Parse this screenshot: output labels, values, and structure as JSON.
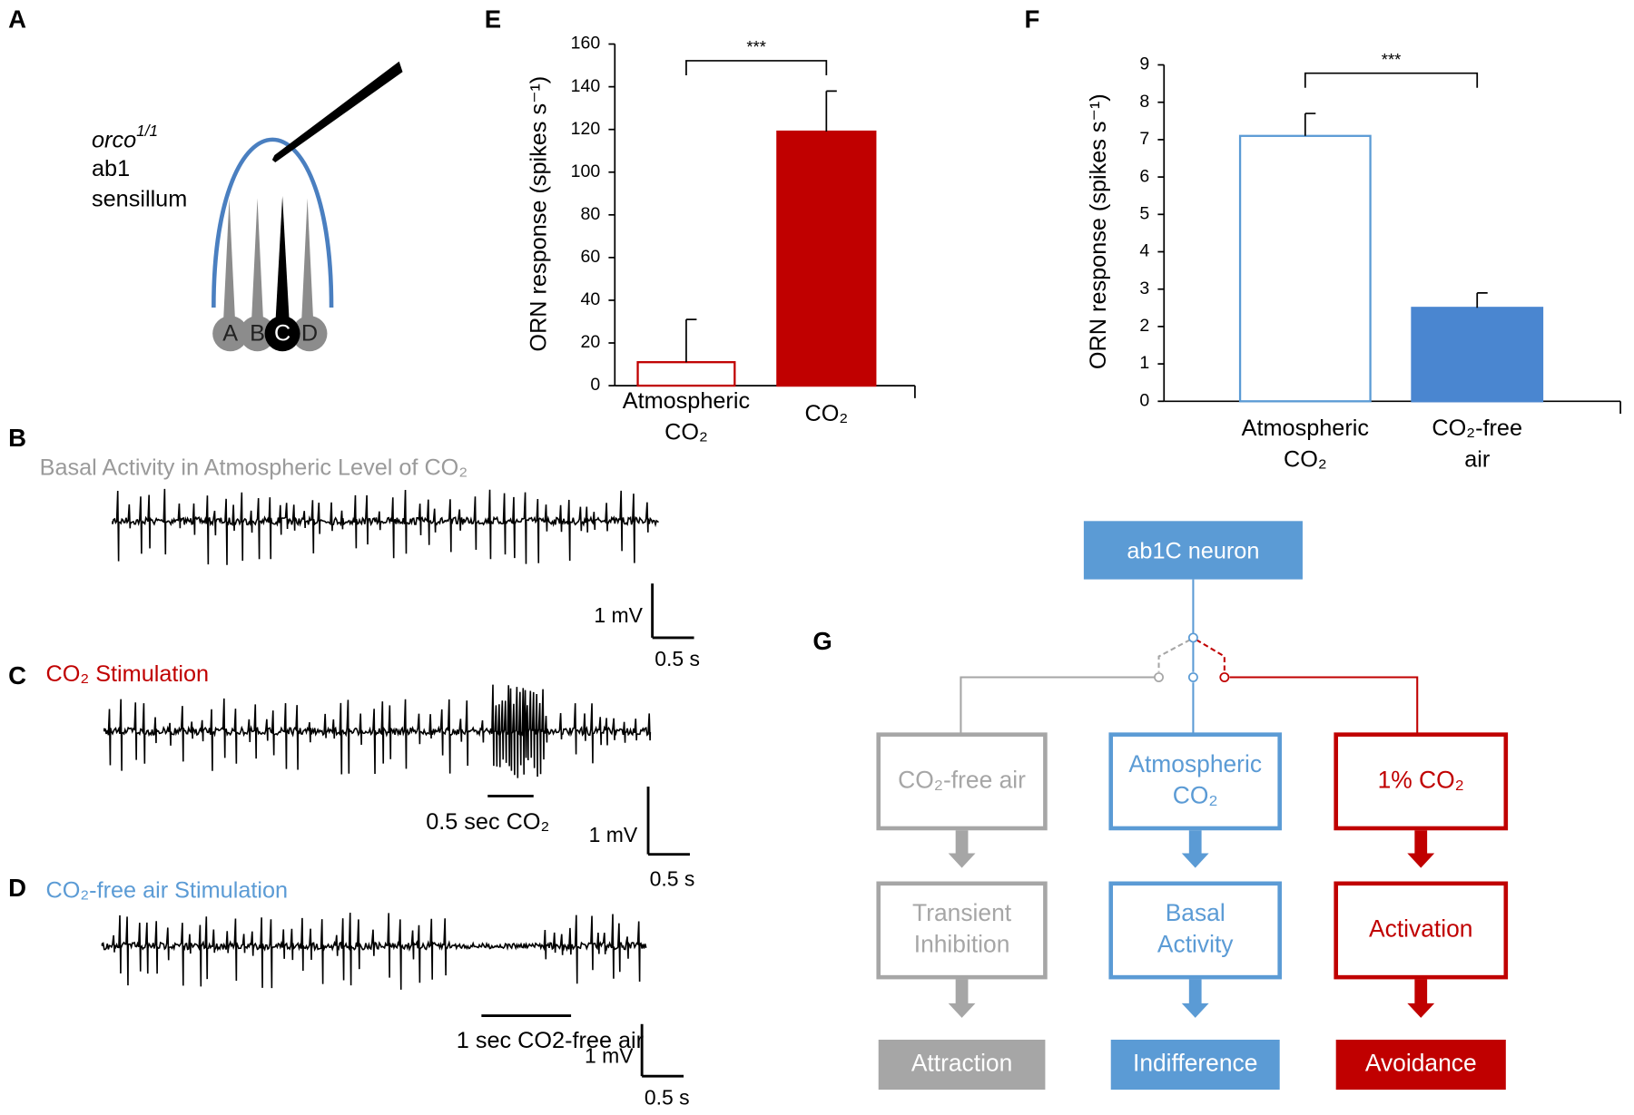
{
  "panel_labels": [
    "A",
    "B",
    "C",
    "D",
    "E",
    "F",
    "G"
  ],
  "panel_a": {
    "genotype": "orco",
    "genotype_sup": "1/1",
    "lines": [
      "ab1",
      "sensillum"
    ],
    "neurons": [
      "A",
      "B",
      "C",
      "D"
    ]
  },
  "traces": [
    {
      "title": "Basal Activity in Atmospheric Level of CO₂",
      "title_color": "#9a9a9a",
      "scale_v": "1 mV",
      "scale_t": "0.5 s"
    },
    {
      "title": "CO₂ Stimulation",
      "title_color": "#c00000",
      "scale_v": "1 mV",
      "scale_t": "0.5 s",
      "stimulus": "0.5 sec  CO₂"
    },
    {
      "title": "CO₂-free air Stimulation",
      "title_color": "#5b9bd5",
      "scale_v": "1 mV",
      "scale_t": "0.5 s",
      "stimulus": "1 sec CO2-free air"
    }
  ],
  "chart_data": [
    {
      "type": "bar",
      "ylabel": "ORN response (spikes s⁻¹)",
      "categories": [
        [
          "Atmospheric",
          "CO₂"
        ],
        [
          "CO₂"
        ]
      ],
      "values": [
        11,
        119
      ],
      "errors": [
        20,
        19
      ],
      "colors": [
        "#ffffff",
        "#c00000"
      ],
      "edge_colors": [
        "#c00000",
        "#c00000"
      ],
      "ylim": [
        0,
        160
      ],
      "yticks": [
        0,
        20,
        40,
        60,
        80,
        100,
        120,
        140,
        160
      ],
      "significance": "***"
    },
    {
      "type": "bar",
      "ylabel": "ORN response (spikes s⁻¹)",
      "categories": [
        [
          "Atmospheric",
          "CO₂"
        ],
        [
          "CO₂-free",
          "air"
        ]
      ],
      "values": [
        7.1,
        2.5
      ],
      "errors": [
        0.6,
        0.4
      ],
      "colors": [
        "#ffffff",
        "#4a86d0"
      ],
      "edge_colors": [
        "#5b9bd5",
        "#4a86d0"
      ],
      "ylim": [
        0,
        9
      ],
      "yticks": [
        0,
        1,
        2,
        3,
        4,
        5,
        6,
        7,
        8,
        9
      ],
      "significance": "***"
    }
  ],
  "diagram": {
    "top": "ab1C neuron",
    "columns": [
      {
        "color": "#a6a6a6",
        "stimulus": [
          "CO₂-free air"
        ],
        "response": [
          "Transient",
          "Inhibition"
        ],
        "behavior": "Attraction"
      },
      {
        "color": "#5b9bd5",
        "stimulus": [
          "Atmospheric",
          "CO₂"
        ],
        "response": [
          "Basal",
          "Activity"
        ],
        "behavior": "Indifference"
      },
      {
        "color": "#c00000",
        "stimulus": [
          "1% CO₂"
        ],
        "response": [
          "Activation"
        ],
        "behavior": "Avoidance"
      }
    ]
  }
}
